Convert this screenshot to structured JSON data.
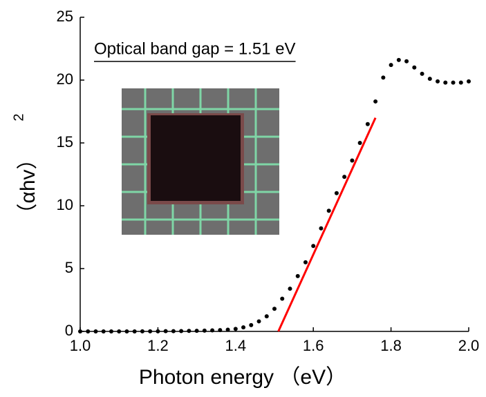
{
  "chart_data": {
    "type": "scatter",
    "annotation": "Optical band gap = 1.51 eV",
    "x_label": "Photon energy （eV）",
    "y_label": "（αhv）",
    "y_label_superscript": "2",
    "xlim": [
      1.0,
      2.0
    ],
    "xticks": [
      {
        "value": 1.0,
        "label": "1.0"
      },
      1.2,
      1.4,
      1.6,
      1.8,
      {
        "value": 2.0,
        "label": "2.0"
      }
    ],
    "ylim": [
      0,
      25
    ],
    "yticks": [
      0,
      5,
      10,
      15,
      20,
      25
    ],
    "series": [
      {
        "color": "#000000",
        "x": [
          1.0,
          1.02,
          1.04,
          1.06,
          1.08,
          1.1,
          1.12,
          1.14,
          1.16,
          1.18,
          1.2,
          1.22,
          1.24,
          1.26,
          1.28,
          1.3,
          1.32,
          1.34,
          1.36,
          1.38,
          1.4,
          1.42,
          1.44,
          1.46,
          1.48,
          1.5,
          1.52,
          1.54,
          1.56,
          1.58,
          1.6,
          1.62,
          1.64,
          1.66,
          1.68,
          1.7,
          1.72,
          1.74,
          1.76,
          1.78,
          1.8,
          1.82,
          1.84,
          1.86,
          1.88,
          1.9,
          1.92,
          1.94,
          1.96,
          1.98,
          2.0
        ],
        "values": [
          0,
          0,
          0,
          0,
          0,
          0,
          0,
          0,
          0.01,
          0.01,
          0.01,
          0.02,
          0.02,
          0.03,
          0.04,
          0.05,
          0.06,
          0.08,
          0.1,
          0.14,
          0.2,
          0.32,
          0.5,
          0.8,
          1.2,
          1.8,
          2.6,
          3.4,
          4.4,
          5.5,
          6.8,
          8.2,
          9.6,
          11.0,
          12.3,
          13.6,
          15.0,
          16.5,
          18.3,
          20.2,
          21.2,
          21.6,
          21.5,
          21.0,
          20.5,
          20.1,
          19.9,
          19.8,
          19.8,
          19.8,
          19.9
        ]
      }
    ],
    "fit_line": {
      "color": "#ff0000",
      "x": [
        1.51,
        1.76
      ],
      "values": [
        0,
        17
      ]
    }
  }
}
